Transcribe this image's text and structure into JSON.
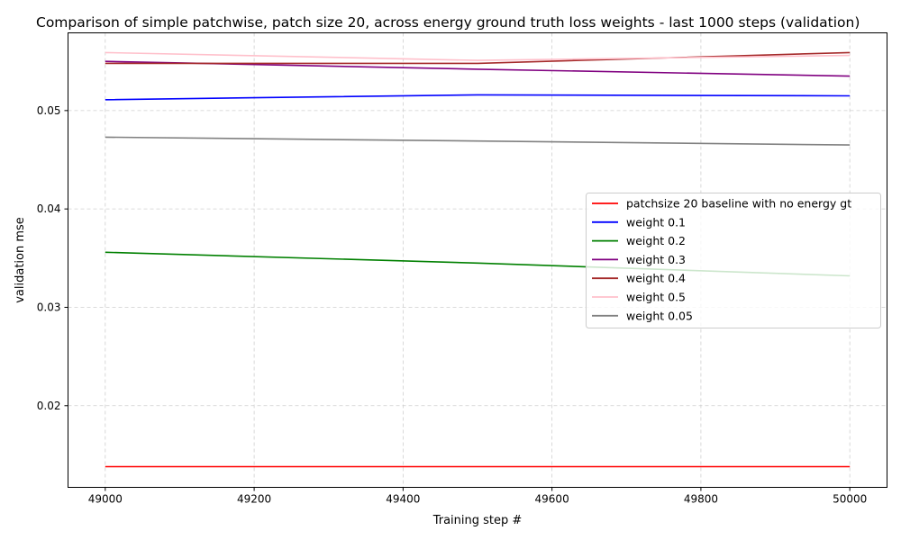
{
  "chart_data": {
    "type": "line",
    "title": "Comparison of simple patchwise, patch size 20, across energy ground truth loss weights - last 1000 steps (validation)",
    "xlabel": "Training step #",
    "ylabel": "validation mse",
    "xlim": [
      48950,
      50050
    ],
    "ylim": [
      0.0117,
      0.0579
    ],
    "xticks": [
      49000,
      49200,
      49400,
      49600,
      49800,
      50000
    ],
    "yticks": [
      0.02,
      0.03,
      0.04,
      0.05
    ],
    "ytick_labels": [
      "0.02",
      "0.03",
      "0.04",
      "0.05"
    ],
    "grid": true,
    "legend_position": "center-right",
    "series": [
      {
        "name": "patchsize 20 baseline with no energy gt",
        "color": "#ff0000",
        "x": [
          49000,
          49500,
          50000
        ],
        "y": [
          0.0138,
          0.0138,
          0.0138
        ]
      },
      {
        "name": "weight 0.1",
        "color": "#0000ff",
        "x": [
          49000,
          49200,
          49500,
          50000
        ],
        "y": [
          0.0511,
          0.0513,
          0.0516,
          0.0515
        ]
      },
      {
        "name": "weight 0.2",
        "color": "#008000",
        "x": [
          49000,
          49500,
          50000
        ],
        "y": [
          0.0356,
          0.0345,
          0.0332
        ]
      },
      {
        "name": "weight 0.3",
        "color": "#800080",
        "x": [
          49000,
          49500,
          50000
        ],
        "y": [
          0.055,
          0.0542,
          0.0535
        ]
      },
      {
        "name": "weight 0.4",
        "color": "#a52a2a",
        "x": [
          49000,
          49500,
          50000
        ],
        "y": [
          0.0548,
          0.0548,
          0.0559
        ]
      },
      {
        "name": "weight 0.5",
        "color": "#ffc0cb",
        "x": [
          49000,
          49500,
          50000
        ],
        "y": [
          0.0559,
          0.0551,
          0.0556
        ]
      },
      {
        "name": "weight 0.05",
        "color": "#808080",
        "x": [
          49000,
          49500,
          50000
        ],
        "y": [
          0.0473,
          0.0469,
          0.0465
        ]
      }
    ]
  }
}
